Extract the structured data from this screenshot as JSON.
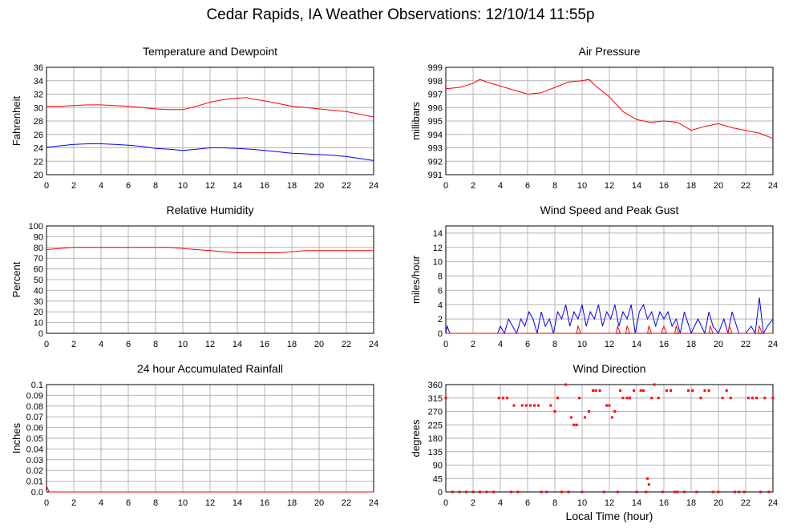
{
  "page_title": "Cedar Rapids, IA Weather Observations: 12/10/14 11:55p",
  "colors": {
    "red": "#ff0000",
    "blue": "#0000ff",
    "grid": "#b4b4b4"
  },
  "chart_data": [
    {
      "id": "temp",
      "type": "line",
      "title": "Temperature and Dewpoint",
      "ylabel": "Fahrenheit",
      "xlabel": "",
      "xlim": [
        0,
        24
      ],
      "ylim": [
        20,
        36
      ],
      "xticks": [
        0,
        2,
        4,
        6,
        8,
        10,
        12,
        14,
        16,
        18,
        20,
        22,
        24
      ],
      "yticks": [
        20,
        22,
        24,
        26,
        28,
        30,
        32,
        34,
        36
      ],
      "grid": true,
      "series": [
        {
          "color": "#ff0000",
          "x": [
            0,
            1,
            2,
            3,
            4,
            5,
            6,
            7,
            8,
            9,
            10,
            11,
            12,
            13,
            14,
            14.7,
            15,
            16,
            17,
            18,
            19,
            20,
            21,
            22,
            23,
            24
          ],
          "y": [
            30.2,
            30.2,
            30.3,
            30.4,
            30.4,
            30.3,
            30.2,
            30.0,
            29.8,
            29.7,
            29.7,
            30.2,
            30.8,
            31.2,
            31.4,
            31.5,
            31.3,
            31.0,
            30.6,
            30.2,
            30.0,
            29.8,
            29.6,
            29.4,
            29.0,
            28.6
          ]
        },
        {
          "color": "#0000ff",
          "x": [
            0,
            1,
            2,
            3,
            4,
            5,
            6,
            7,
            8,
            9,
            10,
            11,
            12,
            13,
            14,
            15,
            16,
            17,
            18,
            19,
            20,
            21,
            22,
            23,
            24
          ],
          "y": [
            24.1,
            24.3,
            24.5,
            24.6,
            24.6,
            24.5,
            24.4,
            24.2,
            23.9,
            23.8,
            23.6,
            23.8,
            24.0,
            24.0,
            23.9,
            23.8,
            23.6,
            23.4,
            23.2,
            23.1,
            23.0,
            22.9,
            22.7,
            22.4,
            22.1
          ]
        }
      ]
    },
    {
      "id": "pressure",
      "type": "line",
      "title": "Air Pressure",
      "ylabel": "millibars",
      "xlabel": "",
      "xlim": [
        0,
        24
      ],
      "ylim": [
        991,
        999
      ],
      "xticks": [
        0,
        2,
        4,
        6,
        8,
        10,
        12,
        14,
        16,
        18,
        20,
        22,
        24
      ],
      "yticks": [
        991,
        992,
        993,
        994,
        995,
        996,
        997,
        998,
        999
      ],
      "grid": true,
      "series": [
        {
          "color": "#ff0000",
          "x": [
            0,
            1,
            2,
            2.5,
            3,
            4,
            5,
            6,
            7,
            8,
            9,
            10,
            10.5,
            11,
            12,
            13,
            14,
            15,
            16,
            17,
            18,
            19,
            20,
            21,
            22,
            23,
            24
          ],
          "y": [
            997.4,
            997.5,
            997.8,
            998.1,
            997.9,
            997.6,
            997.3,
            997.0,
            997.1,
            997.5,
            997.9,
            998.0,
            998.1,
            997.6,
            996.8,
            995.7,
            995.1,
            994.9,
            995.0,
            994.9,
            994.3,
            994.6,
            994.8,
            994.5,
            994.3,
            994.1,
            993.7
          ]
        }
      ]
    },
    {
      "id": "humidity",
      "type": "line",
      "title": "Relative Humidity",
      "ylabel": "Percent",
      "xlabel": "",
      "xlim": [
        0,
        24
      ],
      "ylim": [
        0,
        100
      ],
      "xticks": [
        0,
        2,
        4,
        6,
        8,
        10,
        12,
        14,
        16,
        18,
        20,
        22,
        24
      ],
      "yticks": [
        0,
        10,
        20,
        30,
        40,
        50,
        60,
        70,
        80,
        90,
        100
      ],
      "grid": true,
      "series": [
        {
          "color": "#ff0000",
          "x": [
            0,
            1,
            2,
            4,
            6,
            8,
            9,
            10,
            11,
            12,
            13,
            14,
            15,
            16,
            17,
            18,
            19,
            20,
            22,
            24
          ],
          "y": [
            78,
            79,
            80,
            80,
            80,
            80,
            80,
            79,
            78,
            77,
            76,
            75,
            75,
            75,
            75,
            76,
            77,
            77,
            77,
            77
          ]
        }
      ]
    },
    {
      "id": "wind",
      "type": "line",
      "title": "Wind Speed and Peak Gust",
      "ylabel": "miles/hour",
      "xlabel": "",
      "xlim": [
        0,
        24
      ],
      "ylim": [
        0,
        15
      ],
      "xticks": [
        0,
        2,
        4,
        6,
        8,
        10,
        12,
        14,
        16,
        18,
        20,
        22,
        24
      ],
      "yticks": [
        0,
        2,
        4,
        6,
        8,
        10,
        12,
        14
      ],
      "grid": true,
      "series": [
        {
          "color": "#0000ff",
          "x": [
            0,
            0.1,
            0.3,
            3.8,
            4.0,
            4.3,
            4.6,
            4.9,
            5.2,
            5.5,
            5.8,
            6.1,
            6.4,
            6.7,
            7.0,
            7.3,
            7.6,
            7.9,
            8.2,
            8.5,
            8.8,
            9.1,
            9.4,
            9.7,
            10.0,
            10.3,
            10.6,
            10.9,
            11.2,
            11.5,
            11.8,
            12.1,
            12.4,
            12.7,
            13.0,
            13.3,
            13.6,
            13.9,
            14.2,
            14.5,
            14.8,
            15.1,
            15.4,
            15.7,
            16.0,
            16.3,
            16.6,
            16.9,
            17.2,
            17.5,
            18.0,
            18.5,
            19.0,
            19.3,
            19.6,
            20.0,
            20.4,
            20.7,
            21.0,
            21.5,
            22.0,
            22.4,
            22.7,
            23.0,
            23.3,
            23.6,
            24.0
          ],
          "y": [
            0,
            1,
            0,
            0,
            1,
            0,
            2,
            1,
            0,
            2,
            1,
            3,
            2,
            0,
            3,
            1,
            2,
            0,
            3,
            2,
            4,
            1,
            3,
            2,
            4,
            1,
            3,
            2,
            4,
            1,
            3,
            2,
            4,
            1,
            3,
            2,
            4,
            0,
            3,
            4,
            2,
            3,
            1,
            3,
            2,
            3,
            1,
            2,
            0,
            3,
            0,
            2,
            0,
            3,
            1,
            0,
            2,
            0,
            3,
            0,
            0,
            1,
            0,
            5,
            0,
            1,
            2
          ]
        },
        {
          "color": "#ff0000",
          "x": [
            0,
            9.6,
            9.7,
            9.9,
            10.5,
            11.8,
            12.5,
            12.6,
            12.8,
            13.2,
            13.3,
            13.5,
            14.8,
            14.9,
            15.1,
            15.8,
            16.0,
            16.2,
            16.8,
            16.9,
            17.1,
            19.3,
            19.4,
            19.6,
            20.7,
            20.8,
            21.0,
            22.9,
            23.0,
            23.2,
            24
          ],
          "y": [
            0,
            0,
            1,
            0,
            0,
            0,
            0,
            1,
            0,
            0,
            1,
            0,
            0,
            1,
            0,
            0,
            1,
            0,
            0,
            1,
            0,
            0,
            1,
            0,
            0,
            1,
            0,
            0,
            1,
            0,
            0
          ]
        }
      ]
    },
    {
      "id": "rain",
      "type": "line",
      "title": "24 hour Accumulated Rainfall",
      "ylabel": "Inches",
      "xlabel": "",
      "xlim": [
        0,
        24
      ],
      "ylim": [
        0,
        0.1
      ],
      "xticks": [
        0,
        2,
        4,
        6,
        8,
        10,
        12,
        14,
        16,
        18,
        20,
        22,
        24
      ],
      "yticks": [
        0.0,
        0.01,
        0.02,
        0.03,
        0.04,
        0.05,
        0.06,
        0.07,
        0.08,
        0.09,
        0.1
      ],
      "yticklabels": [
        "0.0",
        "0.01",
        "0.02",
        "0.03",
        "0.04",
        "0.05",
        "0.06",
        "0.07",
        "0.08",
        "0.09",
        "0.1"
      ],
      "grid": true,
      "series": [
        {
          "color": "#ff0000",
          "x": [
            0,
            0.05,
            0.2,
            24
          ],
          "y": [
            0,
            0.004,
            0,
            0
          ]
        }
      ]
    },
    {
      "id": "direction",
      "type": "scatter",
      "title": "Wind Direction",
      "ylabel": "degrees",
      "xlabel": "Local Time (hour)",
      "xlim": [
        0,
        24
      ],
      "ylim": [
        0,
        360
      ],
      "xticks": [
        0,
        2,
        4,
        6,
        8,
        10,
        12,
        14,
        16,
        18,
        20,
        22,
        24
      ],
      "yticks": [
        0,
        45,
        90,
        135,
        180,
        225,
        270,
        315,
        360
      ],
      "grid": true,
      "series": [
        {
          "color": "#ff0000",
          "points": [
            [
              0,
              315
            ],
            [
              0.5,
              0
            ],
            [
              1.0,
              0
            ],
            [
              1.5,
              0
            ],
            [
              2.0,
              0
            ],
            [
              2.5,
              0
            ],
            [
              3.0,
              0
            ],
            [
              3.5,
              0
            ],
            [
              3.9,
              315
            ],
            [
              4.2,
              315
            ],
            [
              4.5,
              315
            ],
            [
              4.8,
              0
            ],
            [
              5.0,
              290
            ],
            [
              5.3,
              0
            ],
            [
              5.6,
              290
            ],
            [
              5.9,
              290
            ],
            [
              6.2,
              290
            ],
            [
              6.5,
              290
            ],
            [
              6.8,
              290
            ],
            [
              7.0,
              0
            ],
            [
              7.4,
              0
            ],
            [
              7.7,
              290
            ],
            [
              8.0,
              270
            ],
            [
              8.2,
              315
            ],
            [
              8.5,
              0
            ],
            [
              8.8,
              360
            ],
            [
              9.0,
              0
            ],
            [
              9.2,
              250
            ],
            [
              9.4,
              225
            ],
            [
              9.6,
              225
            ],
            [
              9.8,
              315
            ],
            [
              10.0,
              0
            ],
            [
              10.2,
              250
            ],
            [
              10.5,
              270
            ],
            [
              10.8,
              340
            ],
            [
              11.0,
              340
            ],
            [
              11.3,
              340
            ],
            [
              11.6,
              0
            ],
            [
              11.8,
              290
            ],
            [
              12.0,
              290
            ],
            [
              12.2,
              250
            ],
            [
              12.4,
              270
            ],
            [
              12.6,
              0
            ],
            [
              12.8,
              340
            ],
            [
              13.0,
              315
            ],
            [
              13.3,
              315
            ],
            [
              13.5,
              315
            ],
            [
              13.8,
              340
            ],
            [
              14.0,
              0
            ],
            [
              14.3,
              340
            ],
            [
              14.5,
              340
            ],
            [
              14.7,
              0
            ],
            [
              14.8,
              45
            ],
            [
              14.9,
              25
            ],
            [
              15.1,
              315
            ],
            [
              15.3,
              360
            ],
            [
              15.6,
              315
            ],
            [
              15.9,
              0
            ],
            [
              16.2,
              340
            ],
            [
              16.5,
              340
            ],
            [
              16.8,
              0
            ],
            [
              17.0,
              0
            ],
            [
              17.5,
              0
            ],
            [
              17.8,
              340
            ],
            [
              18.1,
              340
            ],
            [
              18.4,
              0
            ],
            [
              18.7,
              315
            ],
            [
              19.0,
              340
            ],
            [
              19.3,
              340
            ],
            [
              19.6,
              0
            ],
            [
              20.0,
              0
            ],
            [
              20.3,
              315
            ],
            [
              20.6,
              340
            ],
            [
              20.9,
              315
            ],
            [
              21.2,
              0
            ],
            [
              21.5,
              0
            ],
            [
              21.9,
              0
            ],
            [
              22.2,
              315
            ],
            [
              22.5,
              315
            ],
            [
              22.8,
              315
            ],
            [
              23.1,
              0
            ],
            [
              23.4,
              315
            ],
            [
              23.7,
              0
            ],
            [
              24.0,
              315
            ]
          ]
        }
      ]
    }
  ]
}
